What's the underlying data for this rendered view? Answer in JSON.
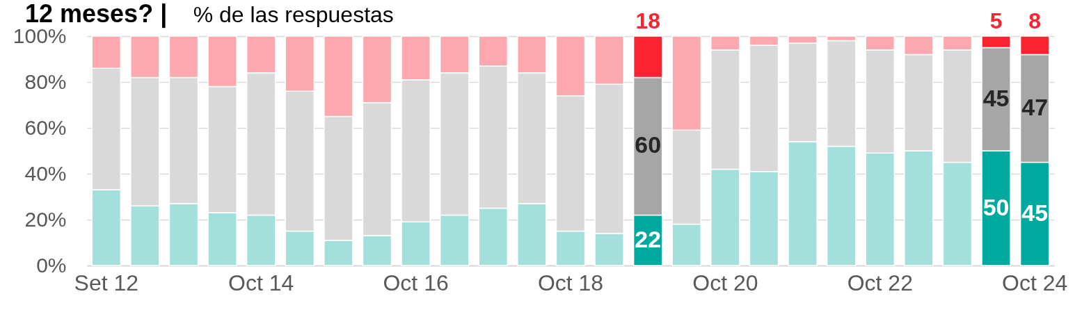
{
  "chart_data": {
    "type": "bar",
    "title": "12 meses? |",
    "subtitle": "% de las respuestas",
    "categories": [
      "Set 12",
      null,
      null,
      null,
      "Oct 14",
      null,
      null,
      null,
      "Oct 16",
      null,
      null,
      null,
      "Oct 18",
      null,
      null,
      null,
      "Oct 20",
      null,
      null,
      null,
      "Oct 22",
      null,
      null,
      null,
      "Oct 24"
    ],
    "stacked": true,
    "series": [
      {
        "colors": [
          "#a3dfdb",
          "#a3dfdb",
          "#a3dfdb",
          "#a3dfdb",
          "#a3dfdb",
          "#a3dfdb",
          "#a3dfdb",
          "#a3dfdb",
          "#a3dfdb",
          "#a3dfdb",
          "#a3dfdb",
          "#a3dfdb",
          "#a3dfdb",
          "#a3dfdb",
          "#00a99d",
          "#a3dfdb",
          "#a3dfdb",
          "#a3dfdb",
          "#a3dfdb",
          "#a3dfdb",
          "#a3dfdb",
          "#a3dfdb",
          "#a3dfdb",
          "#00a99d",
          "#00a99d"
        ],
        "values": [
          33,
          26,
          27,
          23,
          22,
          15,
          11,
          13,
          19,
          22,
          25,
          27,
          15,
          14,
          22,
          18,
          42,
          41,
          54,
          52,
          49,
          50,
          45,
          50,
          45
        ],
        "value_labels": [
          null,
          null,
          null,
          null,
          null,
          null,
          null,
          null,
          null,
          null,
          null,
          null,
          null,
          null,
          "22",
          null,
          null,
          null,
          null,
          null,
          null,
          null,
          null,
          "50",
          "45"
        ]
      },
      {
        "colors": [
          "#d9d9d9",
          "#d9d9d9",
          "#d9d9d9",
          "#d9d9d9",
          "#d9d9d9",
          "#d9d9d9",
          "#d9d9d9",
          "#d9d9d9",
          "#d9d9d9",
          "#d9d9d9",
          "#d9d9d9",
          "#d9d9d9",
          "#d9d9d9",
          "#d9d9d9",
          "#a6a6a6",
          "#d9d9d9",
          "#d9d9d9",
          "#d9d9d9",
          "#d9d9d9",
          "#d9d9d9",
          "#d9d9d9",
          "#d9d9d9",
          "#d9d9d9",
          "#a6a6a6",
          "#a6a6a6"
        ],
        "values": [
          53,
          56,
          55,
          55,
          62,
          61,
          54,
          58,
          62,
          62,
          62,
          57,
          59,
          65,
          60,
          41,
          52,
          55,
          43,
          46,
          45,
          42,
          49,
          45,
          47
        ],
        "value_labels": [
          null,
          null,
          null,
          null,
          null,
          null,
          null,
          null,
          null,
          null,
          null,
          null,
          null,
          null,
          "60",
          null,
          null,
          null,
          null,
          null,
          null,
          null,
          null,
          "45",
          "47"
        ]
      },
      {
        "colors": [
          "#fda8ae",
          "#fda8ae",
          "#fda8ae",
          "#fda8ae",
          "#fda8ae",
          "#fda8ae",
          "#fda8ae",
          "#fda8ae",
          "#fda8ae",
          "#fda8ae",
          "#fda8ae",
          "#fda8ae",
          "#fda8ae",
          "#fda8ae",
          "#fa2330",
          "#fda8ae",
          "#fda8ae",
          "#fda8ae",
          "#fda8ae",
          "#fda8ae",
          "#fda8ae",
          "#fda8ae",
          "#fda8ae",
          "#fa2330",
          "#fa2330"
        ],
        "values": [
          14,
          18,
          18,
          22,
          16,
          24,
          35,
          29,
          19,
          16,
          13,
          16,
          26,
          21,
          18,
          41,
          6,
          4,
          3,
          2,
          6,
          8,
          6,
          5,
          8
        ],
        "value_labels": [
          null,
          null,
          null,
          null,
          null,
          null,
          null,
          null,
          null,
          null,
          null,
          null,
          null,
          null,
          "18",
          null,
          null,
          null,
          null,
          null,
          null,
          null,
          null,
          "5",
          "8"
        ]
      }
    ],
    "ylim": [
      0,
      100
    ],
    "yticks": [
      {
        "value": 0,
        "label": "0%"
      },
      {
        "value": 20,
        "label": "20%"
      },
      {
        "value": 40,
        "label": "40%"
      },
      {
        "value": 60,
        "label": "60%"
      },
      {
        "value": 80,
        "label": "80%"
      },
      {
        "value": 100,
        "label": "100%"
      }
    ],
    "grid": "y"
  }
}
